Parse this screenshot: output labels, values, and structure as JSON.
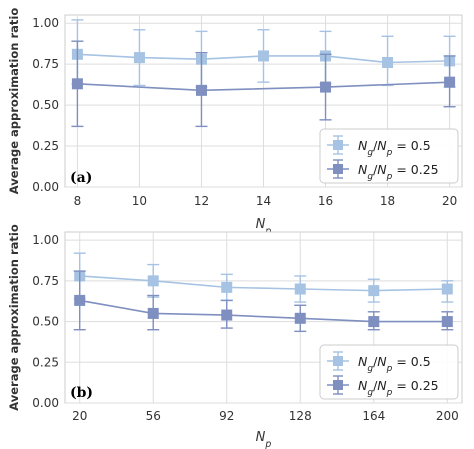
{
  "colors": {
    "series_half": "#a6c3e3",
    "series_quarter": "#7e8fc0",
    "grid": "#dddddd",
    "axes": "#cccccc"
  },
  "chart_data": [
    {
      "type": "line",
      "panel_label": "(a)",
      "xlabel": "N_p",
      "ylabel": "Average approximation ratio",
      "x": [
        8,
        10,
        12,
        14,
        16,
        18,
        20
      ],
      "xticks": [
        "8",
        "10",
        "12",
        "14",
        "16",
        "18",
        "20"
      ],
      "yticks": [
        "0.00",
        "0.25",
        "0.50",
        "0.75",
        "1.00"
      ],
      "xlim": [
        7.6,
        20.4
      ],
      "ylim": [
        0,
        1.05
      ],
      "grid": true,
      "legend_position": "lower-right",
      "series": [
        {
          "name": "N_g/N_p = 0.5",
          "x": [
            8,
            10,
            12,
            14,
            16,
            18,
            20
          ],
          "values": [
            0.81,
            0.79,
            0.78,
            0.8,
            0.8,
            0.76,
            0.77
          ],
          "err_low": [
            0.63,
            0.62,
            0.61,
            0.64,
            0.63,
            0.62,
            0.61
          ],
          "err_high": [
            1.02,
            0.96,
            0.95,
            0.96,
            0.95,
            0.92,
            0.92
          ],
          "color": "#a6c3e3"
        },
        {
          "name": "N_g/N_p = 0.25",
          "x": [
            8,
            12,
            16,
            20
          ],
          "values": [
            0.63,
            0.59,
            0.61,
            0.64
          ],
          "err_low": [
            0.37,
            0.37,
            0.41,
            0.49
          ],
          "err_high": [
            0.89,
            0.82,
            0.81,
            0.8
          ],
          "color": "#7e8fc0"
        }
      ]
    },
    {
      "type": "line",
      "panel_label": "(b)",
      "xlabel": "N_p",
      "ylabel": "Average approximation ratio",
      "x": [
        20,
        56,
        92,
        128,
        164,
        200
      ],
      "xticks": [
        "20",
        "56",
        "92",
        "128",
        "164",
        "200"
      ],
      "yticks": [
        "0.00",
        "0.25",
        "0.50",
        "0.75",
        "1.00"
      ],
      "xlim": [
        12.8,
        207.2
      ],
      "ylim": [
        0,
        1.05
      ],
      "grid": true,
      "legend_position": "lower-right",
      "series": [
        {
          "name": "N_g/N_p = 0.5",
          "x": [
            20,
            56,
            92,
            128,
            164,
            200
          ],
          "values": [
            0.78,
            0.75,
            0.71,
            0.7,
            0.69,
            0.7
          ],
          "err_low": [
            0.64,
            0.65,
            0.63,
            0.62,
            0.62,
            0.62
          ],
          "err_high": [
            0.92,
            0.85,
            0.79,
            0.78,
            0.76,
            0.75
          ],
          "color": "#a6c3e3"
        },
        {
          "name": "N_g/N_p = 0.25",
          "x": [
            20,
            56,
            92,
            128,
            164,
            200
          ],
          "values": [
            0.63,
            0.55,
            0.54,
            0.52,
            0.5,
            0.5
          ],
          "err_low": [
            0.45,
            0.45,
            0.46,
            0.44,
            0.45,
            0.45
          ],
          "err_high": [
            0.81,
            0.66,
            0.63,
            0.6,
            0.56,
            0.56
          ],
          "color": "#7e8fc0"
        }
      ]
    }
  ]
}
